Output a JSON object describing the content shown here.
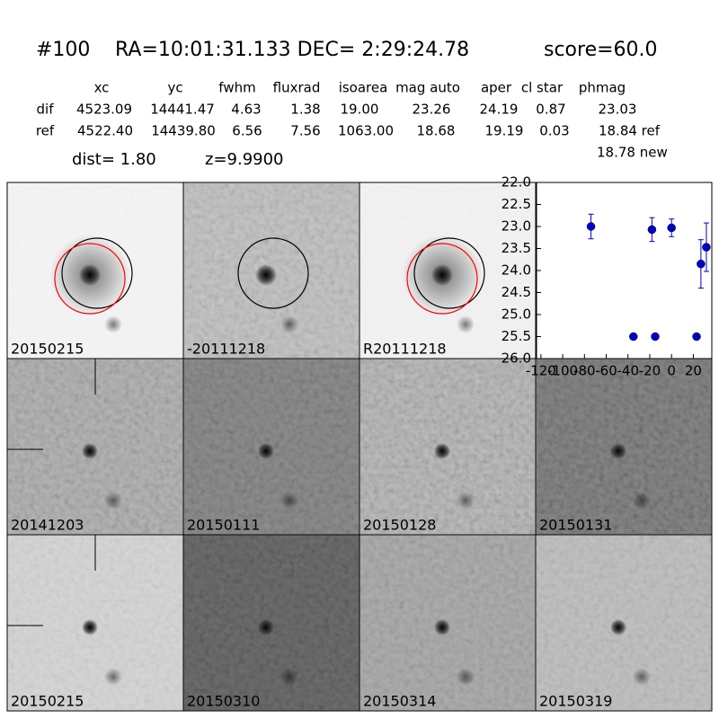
{
  "header": {
    "id": "#100",
    "coords": "RA=10:01:31.133 DEC= 2:29:24.78",
    "score": "score=60.0"
  },
  "table": {
    "columns": [
      "xc",
      "yc",
      "fwhm",
      "fluxrad",
      "isoarea",
      "mag auto",
      "aper",
      "cl star",
      "phmag"
    ],
    "rows": [
      [
        "dif",
        "4523.09",
        "14441.47",
        "4.63",
        "1.38",
        "19.00",
        "23.26",
        "24.19",
        "0.87",
        "23.03"
      ],
      [
        "ref",
        "4522.40",
        "14439.80",
        "6.56",
        "7.56",
        "1063.00",
        "18.68",
        "19.19",
        "0.03",
        "18.84 ref"
      ]
    ],
    "extra": "18.78 new"
  },
  "dist": "dist=  1.80",
  "z": "z=9.9900",
  "panels": [
    {
      "label": "20150215"
    },
    {
      "label": "-20111218"
    },
    {
      "label": "R20111218"
    },
    {
      "label": "20141203"
    },
    {
      "label": "20150111"
    },
    {
      "label": "20150128"
    },
    {
      "label": "20150131"
    },
    {
      "label": "20150215",
      "color": "#ff0000"
    },
    {
      "label": "20150310"
    },
    {
      "label": "20150314"
    },
    {
      "label": "20150319"
    }
  ],
  "chart_data": {
    "type": "scatter",
    "color": "#0000cc",
    "x": [
      -74,
      -35,
      -18,
      -15,
      0,
      23,
      27,
      32
    ],
    "values": [
      23.0,
      25.5,
      23.07,
      25.5,
      23.03,
      25.5,
      23.85,
      23.47
    ],
    "errors": [
      0.28,
      0.05,
      0.27,
      0.05,
      0.2,
      0.05,
      0.55,
      0.55
    ],
    "xlim": [
      -124,
      37
    ],
    "ylim": [
      26.0,
      22.0
    ],
    "xticks": [
      -120,
      -100,
      -80,
      -60,
      -40,
      -20,
      0,
      20
    ],
    "yticks": [
      {
        "value": 22.0,
        "label": "22.0"
      },
      {
        "value": 22.5,
        "label": "22.5"
      },
      {
        "value": 23.0,
        "label": "23.0"
      },
      {
        "value": 23.5,
        "label": "23.5"
      },
      {
        "value": 24.0,
        "label": "24.0"
      },
      {
        "value": 24.5,
        "label": "24.5"
      },
      {
        "value": 25.0,
        "label": "25.0"
      },
      {
        "value": 25.5,
        "label": "25.5"
      },
      {
        "value": 26.0,
        "label": "26.0"
      }
    ]
  }
}
